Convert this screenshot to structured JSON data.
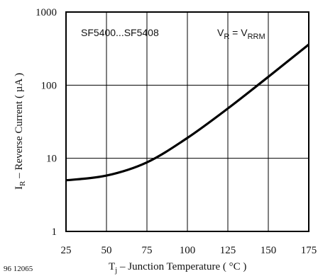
{
  "chart_data": {
    "type": "line",
    "title": "",
    "x_scale": "linear",
    "y_scale": "log",
    "xlim": [
      25,
      175
    ],
    "ylim": [
      1,
      1000
    ],
    "x_ticks": [
      25,
      50,
      75,
      100,
      125,
      150,
      175
    ],
    "x_tick_labels": [
      "25",
      "50",
      "75",
      "100",
      "125",
      "150",
      "175"
    ],
    "y_ticks": [
      1,
      10,
      100,
      1000
    ],
    "y_tick_labels": [
      "1",
      "10",
      "100",
      "1000"
    ],
    "xlabel": {
      "prefix": "T",
      "sub": "j",
      "rest": " – Junction Temperature ( °C )"
    },
    "ylabel": {
      "prefix": "I",
      "sub": "R",
      "rest": " – Reverse Current ( µA )"
    },
    "grid": true,
    "line_color": "#000000",
    "annotations": {
      "device": "SF5400...SF5408",
      "condition": {
        "left_main": "V",
        "left_sub": "R",
        "eq": " = V",
        "right_sub": "RRM"
      }
    },
    "figure_id": "96 12065",
    "series": [
      {
        "x": [
          25,
          50,
          75,
          100,
          125,
          150,
          175
        ],
        "y": [
          5.0,
          5.8,
          8.8,
          19,
          48,
          130,
          360
        ]
      }
    ]
  }
}
